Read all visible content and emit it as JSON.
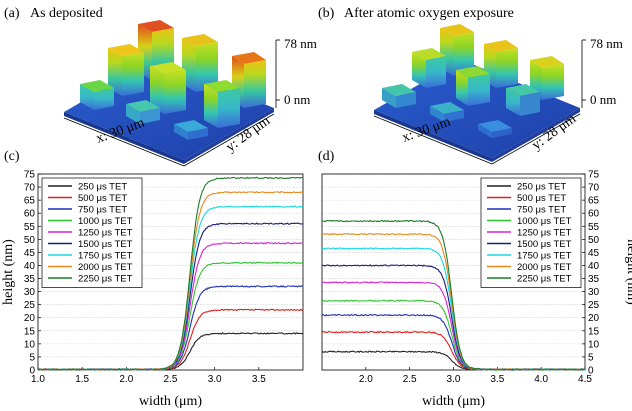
{
  "panels": {
    "a": {
      "label": "(a)",
      "title": "As deposited",
      "zmax": "78 nm",
      "zmin": "0 nm",
      "xlabel": "x: 30 μm",
      "ylabel": "y: 28 μm"
    },
    "b": {
      "label": "(b)",
      "title": "After atomic oxygen exposure",
      "zmax": "78 nm",
      "zmin": "0 nm",
      "xlabel": "x: 30 μm",
      "ylabel": "y: 28 μm"
    }
  },
  "chart_data": [
    {
      "type": "line",
      "panel": "(c)",
      "xlabel": "width (μm)",
      "ylabel": "height (nm)",
      "xlim": [
        1.0,
        4.0
      ],
      "ylim": [
        0,
        75
      ],
      "xticks": [
        "1.0",
        "1.5",
        "2.0",
        "2.5",
        "3.0",
        "3.5"
      ],
      "xtick_values": [
        1.0,
        1.5,
        2.0,
        2.5,
        3.0,
        3.5
      ],
      "yticks": [
        0,
        5,
        10,
        15,
        20,
        25,
        30,
        35,
        40,
        45,
        50,
        55,
        60,
        65,
        70,
        75
      ],
      "grid": true,
      "legend": "top-left",
      "series": [
        {
          "name": "250 μs TET",
          "color": "#222222",
          "low": 0.2,
          "high": 14,
          "step": 2.72
        },
        {
          "name": "500 μs TET",
          "color": "#e02020",
          "low": 0.2,
          "high": 23,
          "step": 2.72
        },
        {
          "name": "750 μs TET",
          "color": "#1f2fb8",
          "low": 0.2,
          "high": 32,
          "step": 2.72
        },
        {
          "name": "1000 μs TET",
          "color": "#2ec62e",
          "low": 0.2,
          "high": 41,
          "step": 2.72
        },
        {
          "name": "1250 μs TET",
          "color": "#d522d5",
          "low": 0.2,
          "high": 48.5,
          "step": 2.72
        },
        {
          "name": "1500 μs TET",
          "color": "#1b1b78",
          "low": 0.2,
          "high": 56,
          "step": 2.72
        },
        {
          "name": "1750 μs TET",
          "color": "#19d8e0",
          "low": 0.2,
          "high": 62.5,
          "step": 2.72
        },
        {
          "name": "2000 μs TET",
          "color": "#e8891c",
          "low": 0.2,
          "high": 68,
          "step": 2.72
        },
        {
          "name": "2250 μs TET",
          "color": "#1e7a2a",
          "low": 0.2,
          "high": 73.5,
          "step": 2.72
        }
      ]
    },
    {
      "type": "line",
      "panel": "(d)",
      "xlabel": "width (μm)",
      "ylabel": "height (nm)",
      "xlim": [
        1.5,
        4.5
      ],
      "ylim": [
        0,
        75
      ],
      "xticks": [
        "2.0",
        "2.5",
        "3.0",
        "3.5",
        "4.0",
        "4.5"
      ],
      "xtick_values": [
        2.0,
        2.5,
        3.0,
        3.5,
        4.0,
        4.5
      ],
      "yticks": [
        0,
        5,
        10,
        15,
        20,
        25,
        30,
        35,
        40,
        45,
        50,
        55,
        60,
        65,
        70,
        75
      ],
      "grid": true,
      "legend": "top-right",
      "series": [
        {
          "name": "250 μs TET",
          "color": "#222222",
          "low": 0.2,
          "high": 7,
          "step": 2.98
        },
        {
          "name": "500 μs TET",
          "color": "#e02020",
          "low": 0.2,
          "high": 14.5,
          "step": 2.98
        },
        {
          "name": "750 μs TET",
          "color": "#1f2fb8",
          "low": 0.2,
          "high": 21,
          "step": 2.98
        },
        {
          "name": "1000 μs TET",
          "color": "#2ec62e",
          "low": 0.2,
          "high": 26.5,
          "step": 2.98
        },
        {
          "name": "1250 μs TET",
          "color": "#d522d5",
          "low": 0.2,
          "high": 33.5,
          "step": 2.98
        },
        {
          "name": "1500 μs TET",
          "color": "#1b1b78",
          "low": 0.2,
          "high": 40,
          "step": 2.98
        },
        {
          "name": "1750 μs TET",
          "color": "#19d8e0",
          "low": 0.2,
          "high": 46.5,
          "step": 2.98
        },
        {
          "name": "2000 μs TET",
          "color": "#e8891c",
          "low": 0.2,
          "high": 52,
          "step": 2.98
        },
        {
          "name": "2250 μs TET",
          "color": "#1e7a2a",
          "low": 0.2,
          "high": 57,
          "step": 2.98
        }
      ]
    }
  ]
}
